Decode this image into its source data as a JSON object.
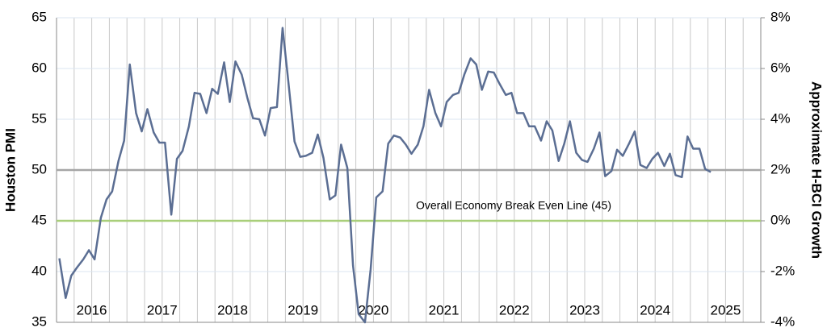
{
  "chart_data": {
    "type": "line",
    "ylabel": "Houston PMI",
    "y2label": "Approximate H-BCI Growth",
    "xlim": [
      2016,
      2026
    ],
    "xticks": [
      {
        "value": 2016.5,
        "label": "2016"
      },
      {
        "value": 2017.5,
        "label": "2017"
      },
      {
        "value": 2018.5,
        "label": "2018"
      },
      {
        "value": 2019.5,
        "label": "2019"
      },
      {
        "value": 2020.5,
        "label": "2020"
      },
      {
        "value": 2021.5,
        "label": "2021"
      },
      {
        "value": 2022.5,
        "label": "2022"
      },
      {
        "value": 2023.5,
        "label": "2023"
      },
      {
        "value": 2024.5,
        "label": "2024"
      },
      {
        "value": 2025.5,
        "label": "2025"
      }
    ],
    "ylim": [
      35,
      65
    ],
    "yticks": [
      35,
      40,
      45,
      50,
      55,
      60,
      65
    ],
    "y2lim": [
      -4,
      8
    ],
    "y2ticks": [
      {
        "value": -4,
        "label": "-4%"
      },
      {
        "value": -2,
        "label": "-2%"
      },
      {
        "value": 0,
        "label": "0%"
      },
      {
        "value": 2,
        "label": "2%"
      },
      {
        "value": 4,
        "label": "4%"
      },
      {
        "value": 6,
        "label": "6%"
      },
      {
        "value": 8,
        "label": "8%"
      }
    ],
    "grid": true,
    "reference_lines": [
      {
        "value": 50,
        "color": "#a6a6a6"
      },
      {
        "value": 45,
        "color": "#a9cf7a",
        "label": "Overall Economy Break Even Line (45)"
      }
    ],
    "x": [
      2016.04,
      2016.13,
      2016.21,
      2016.29,
      2016.38,
      2016.46,
      2016.54,
      2016.63,
      2016.71,
      2016.79,
      2016.88,
      2016.96,
      2017.04,
      2017.13,
      2017.21,
      2017.29,
      2017.38,
      2017.46,
      2017.54,
      2017.63,
      2017.71,
      2017.79,
      2017.88,
      2017.96,
      2018.04,
      2018.13,
      2018.21,
      2018.29,
      2018.38,
      2018.46,
      2018.54,
      2018.63,
      2018.71,
      2018.79,
      2018.88,
      2018.96,
      2019.04,
      2019.13,
      2019.21,
      2019.29,
      2019.38,
      2019.46,
      2019.54,
      2019.63,
      2019.71,
      2019.79,
      2019.88,
      2019.96,
      2020.04,
      2020.13,
      2020.21,
      2020.29,
      2020.38,
      2020.46,
      2020.54,
      2020.63,
      2020.71,
      2020.79,
      2020.88,
      2020.96,
      2021.04,
      2021.13,
      2021.21,
      2021.29,
      2021.38,
      2021.46,
      2021.54,
      2021.63,
      2021.71,
      2021.79,
      2021.88,
      2021.96,
      2022.04,
      2022.13,
      2022.21,
      2022.29,
      2022.38,
      2022.46,
      2022.54,
      2022.63,
      2022.71,
      2022.79,
      2022.88,
      2022.96,
      2023.04,
      2023.13,
      2023.21,
      2023.29,
      2023.38,
      2023.46,
      2023.54,
      2023.63,
      2023.71,
      2023.79,
      2023.88,
      2023.96,
      2024.04,
      2024.13,
      2024.21,
      2024.29,
      2024.38,
      2024.46,
      2024.54,
      2024.63,
      2024.71,
      2024.79,
      2024.88,
      2024.96,
      2025.04,
      2025.13,
      2025.21,
      2025.29
    ],
    "series": [
      {
        "name": "Houston PMI",
        "color": "#5b6e93",
        "values": [
          41.3,
          37.4,
          39.6,
          40.4,
          41.2,
          42.1,
          41.2,
          45.3,
          47.1,
          47.9,
          50.9,
          52.9,
          60.4,
          55.6,
          53.8,
          56.0,
          53.7,
          52.7,
          52.7,
          45.6,
          51.1,
          51.9,
          54.3,
          57.6,
          57.5,
          55.6,
          58.0,
          57.5,
          60.6,
          56.7,
          60.7,
          59.4,
          57.1,
          55.1,
          55.0,
          53.4,
          56.1,
          56.2,
          64.0,
          58.8,
          52.8,
          51.3,
          51.4,
          51.7,
          53.5,
          51.2,
          47.1,
          47.5,
          52.5,
          50.2,
          40.6,
          35.8,
          35.0,
          40.2,
          47.3,
          47.9,
          52.6,
          53.4,
          53.2,
          52.5,
          51.6,
          52.5,
          54.3,
          57.9,
          55.6,
          54.3,
          56.7,
          57.4,
          57.6,
          59.4,
          61.0,
          60.4,
          57.9,
          59.7,
          59.6,
          58.5,
          57.4,
          57.6,
          55.6,
          55.6,
          54.3,
          54.3,
          52.9,
          54.8,
          53.9,
          50.9,
          52.6,
          54.8,
          51.7,
          51.0,
          50.8,
          52.1,
          53.7,
          49.4,
          49.9,
          52.0,
          51.4,
          52.6,
          53.8,
          50.5,
          50.2,
          51.1,
          51.7,
          50.4,
          51.6,
          49.5,
          49.3,
          53.3,
          52.1,
          52.1,
          50.1,
          49.8
        ]
      }
    ]
  }
}
